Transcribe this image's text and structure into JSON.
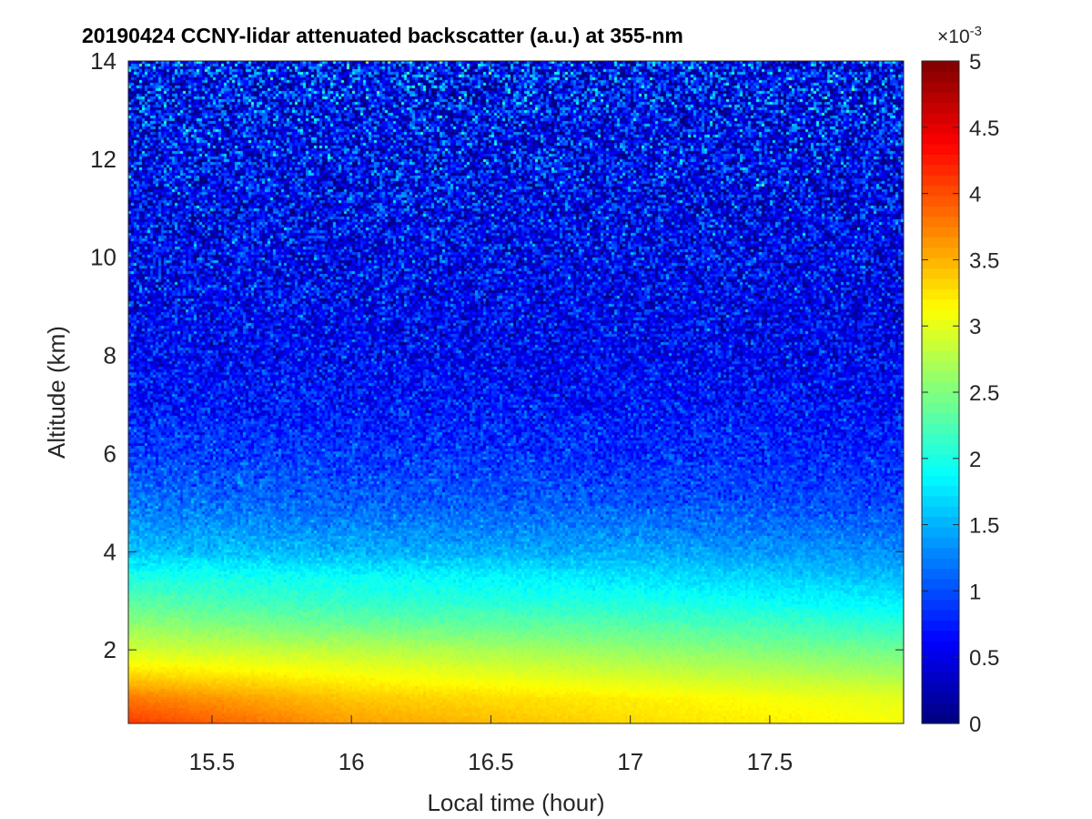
{
  "chart_data": {
    "type": "heatmap",
    "title": "20190424 CCNY-lidar attenuated backscatter (a.u.) at 355-nm",
    "xlabel": "Local time (hour)",
    "ylabel": "Altitude (km)",
    "xlim": [
      15.2,
      17.98
    ],
    "ylim": [
      0.5,
      14
    ],
    "x_ticks": [
      15.5,
      16,
      16.5,
      17,
      17.5
    ],
    "x_tick_labels": [
      "15.5",
      "16",
      "16.5",
      "17",
      "17.5"
    ],
    "y_ticks": [
      2,
      4,
      6,
      8,
      10,
      12,
      14
    ],
    "y_tick_labels": [
      "2",
      "4",
      "6",
      "8",
      "10",
      "12",
      "14"
    ],
    "colorbar": {
      "label": "",
      "range": [
        0,
        0.005
      ],
      "ticks": [
        0,
        0.5,
        1,
        1.5,
        2,
        2.5,
        3,
        3.5,
        4,
        4.5,
        5
      ],
      "tick_labels": [
        "0",
        "0.5",
        "1",
        "1.5",
        "2",
        "2.5",
        "3",
        "3.5",
        "4",
        "4.5",
        "5"
      ],
      "multiplier_base": "×10",
      "multiplier_exponent": "-3",
      "colormap": "jet"
    },
    "profile_altitudes_km": [
      0.5,
      1.0,
      1.5,
      2.0,
      2.5,
      3.0,
      3.5,
      4.0,
      5.0,
      6.0,
      7.0,
      8.0,
      10.0,
      12.0,
      14.0
    ],
    "profile_times_hour": [
      15.2,
      16.0,
      17.0,
      17.98
    ],
    "mean_backscatter_x1e-3": [
      [
        4.1,
        3.6,
        3.3,
        3.1
      ],
      [
        3.8,
        3.4,
        3.2,
        3.0
      ],
      [
        3.3,
        3.1,
        2.9,
        2.7
      ],
      [
        2.9,
        2.8,
        2.6,
        2.4
      ],
      [
        2.6,
        2.4,
        2.3,
        2.1
      ],
      [
        2.3,
        2.1,
        2.0,
        1.8
      ],
      [
        2.0,
        1.9,
        1.75,
        1.55
      ],
      [
        1.6,
        1.5,
        1.45,
        1.3
      ],
      [
        1.2,
        1.1,
        1.05,
        0.95
      ],
      [
        0.95,
        0.9,
        0.85,
        0.8
      ],
      [
        0.75,
        0.72,
        0.7,
        0.68
      ],
      [
        0.65,
        0.62,
        0.6,
        0.58
      ],
      [
        0.6,
        0.58,
        0.57,
        0.55
      ],
      [
        0.62,
        0.6,
        0.58,
        0.57
      ],
      [
        0.7,
        0.68,
        0.66,
        0.65
      ]
    ],
    "noise_amplitude_x1e-3": [
      0.05,
      0.05,
      0.06,
      0.08,
      0.1,
      0.12,
      0.15,
      0.2,
      0.3,
      0.4,
      0.5,
      0.6,
      0.8,
      1.0,
      1.3
    ]
  }
}
